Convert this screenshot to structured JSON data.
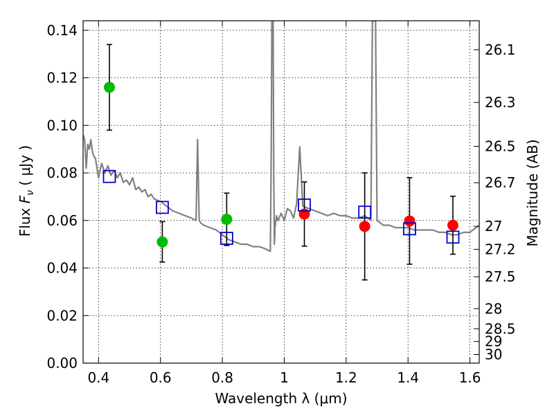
{
  "chart_data": {
    "type": "scatter",
    "xlabel": "Wavelength  λ (μm)",
    "ylabel": "Flux  F_ν  ( μJy )",
    "ylabel_parts": {
      "prefix": "Flux  ",
      "symbol": "F",
      "subscript": "ν",
      "suffix": "  ( μJy )"
    },
    "y2label": "Magnitude (AB)",
    "xlim": [
      0.35,
      1.63
    ],
    "ylim": [
      0.0,
      0.144
    ],
    "grid": true,
    "legend": "none",
    "x_ticks": [
      {
        "value": 0.4,
        "label": "0.4"
      },
      {
        "value": 0.6,
        "label": "0.6"
      },
      {
        "value": 0.8,
        "label": "0.8"
      },
      {
        "value": 1.0,
        "label": "1"
      },
      {
        "value": 1.2,
        "label": "1.2"
      },
      {
        "value": 1.4,
        "label": "1.4"
      },
      {
        "value": 1.6,
        "label": "1.6"
      }
    ],
    "y_ticks": [
      {
        "value": 0.0,
        "label": "0.00"
      },
      {
        "value": 0.02,
        "label": "0.02"
      },
      {
        "value": 0.04,
        "label": "0.04"
      },
      {
        "value": 0.06,
        "label": "0.06"
      },
      {
        "value": 0.08,
        "label": "0.08"
      },
      {
        "value": 0.1,
        "label": "0.10"
      },
      {
        "value": 0.12,
        "label": "0.12"
      },
      {
        "value": 0.14,
        "label": "0.14"
      }
    ],
    "y2_ticks": [
      {
        "value": 26.1,
        "label": "26.1"
      },
      {
        "value": 26.3,
        "label": "26.3"
      },
      {
        "value": 26.5,
        "label": "26.5"
      },
      {
        "value": 26.7,
        "label": "26.7"
      },
      {
        "value": 27.0,
        "label": "27"
      },
      {
        "value": 27.2,
        "label": "27.2"
      },
      {
        "value": 27.5,
        "label": "27.5"
      },
      {
        "value": 28.0,
        "label": "28"
      },
      {
        "value": 28.5,
        "label": "28.5"
      },
      {
        "value": 29.0,
        "label": "29"
      },
      {
        "value": 30.0,
        "label": "30"
      }
    ],
    "series": [
      {
        "kind": "line",
        "color": "#808080",
        "x": [
          0.35,
          0.355,
          0.36,
          0.365,
          0.37,
          0.375,
          0.38,
          0.385,
          0.39,
          0.395,
          0.4,
          0.41,
          0.42,
          0.43,
          0.44,
          0.45,
          0.46,
          0.47,
          0.48,
          0.49,
          0.5,
          0.51,
          0.52,
          0.53,
          0.54,
          0.55,
          0.56,
          0.57,
          0.58,
          0.6,
          0.62,
          0.64,
          0.66,
          0.68,
          0.7,
          0.715,
          0.72,
          0.725,
          0.73,
          0.74,
          0.76,
          0.78,
          0.8,
          0.82,
          0.84,
          0.86,
          0.88,
          0.9,
          0.92,
          0.94,
          0.955,
          0.958,
          0.96,
          0.962,
          0.964,
          0.966,
          0.968,
          0.97,
          0.975,
          0.98,
          0.99,
          1.0,
          1.01,
          1.02,
          1.03,
          1.04,
          1.05,
          1.06,
          1.08,
          1.1,
          1.12,
          1.14,
          1.16,
          1.18,
          1.2,
          1.22,
          1.24,
          1.26,
          1.27,
          1.28,
          1.285,
          1.29,
          1.295,
          1.3,
          1.31,
          1.32,
          1.34,
          1.36,
          1.38,
          1.4,
          1.42,
          1.44,
          1.46,
          1.48,
          1.5,
          1.52,
          1.54,
          1.56,
          1.58,
          1.6,
          1.62,
          1.63
        ],
        "y": [
          0.096,
          0.094,
          0.082,
          0.092,
          0.09,
          0.094,
          0.089,
          0.087,
          0.086,
          0.082,
          0.078,
          0.084,
          0.08,
          0.083,
          0.079,
          0.081,
          0.078,
          0.08,
          0.076,
          0.077,
          0.075,
          0.078,
          0.073,
          0.074,
          0.072,
          0.073,
          0.07,
          0.071,
          0.069,
          0.068,
          0.066,
          0.064,
          0.063,
          0.062,
          0.061,
          0.06,
          0.094,
          0.06,
          0.059,
          0.058,
          0.057,
          0.056,
          0.054,
          0.052,
          0.051,
          0.05,
          0.05,
          0.049,
          0.049,
          0.048,
          0.047,
          0.09,
          0.144,
          0.144,
          0.144,
          0.08,
          0.05,
          0.057,
          0.062,
          0.06,
          0.063,
          0.06,
          0.065,
          0.064,
          0.061,
          0.067,
          0.091,
          0.066,
          0.065,
          0.064,
          0.063,
          0.062,
          0.063,
          0.062,
          0.062,
          0.061,
          0.061,
          0.062,
          0.061,
          0.06,
          0.144,
          0.144,
          0.144,
          0.06,
          0.059,
          0.058,
          0.058,
          0.057,
          0.057,
          0.057,
          0.056,
          0.056,
          0.056,
          0.056,
          0.055,
          0.055,
          0.054,
          0.054,
          0.055,
          0.055,
          0.057,
          0.058
        ]
      },
      {
        "kind": "points",
        "marker": "circle",
        "color": "#00bb00",
        "points": [
          {
            "x": 0.435,
            "y": 0.116,
            "yerr": 0.018
          },
          {
            "x": 0.606,
            "y": 0.051,
            "yerr": 0.0085
          },
          {
            "x": 0.814,
            "y": 0.0605,
            "yerr": 0.011
          }
        ]
      },
      {
        "kind": "points",
        "marker": "circle",
        "color": "#ff0000",
        "points": [
          {
            "x": 1.065,
            "y": 0.0627,
            "yerr": 0.0135
          },
          {
            "x": 1.26,
            "y": 0.0575,
            "yerr": 0.0225
          },
          {
            "x": 1.405,
            "y": 0.0598,
            "yerr": 0.0182
          },
          {
            "x": 1.545,
            "y": 0.058,
            "yerr": 0.0122
          }
        ]
      },
      {
        "kind": "points",
        "marker": "square-open",
        "color": "#0000cc",
        "points": [
          {
            "x": 0.435,
            "y": 0.0785
          },
          {
            "x": 0.606,
            "y": 0.0655
          },
          {
            "x": 0.814,
            "y": 0.0525
          },
          {
            "x": 1.065,
            "y": 0.0665
          },
          {
            "x": 1.26,
            "y": 0.0635
          },
          {
            "x": 1.405,
            "y": 0.0565
          },
          {
            "x": 1.545,
            "y": 0.053
          }
        ]
      }
    ]
  }
}
